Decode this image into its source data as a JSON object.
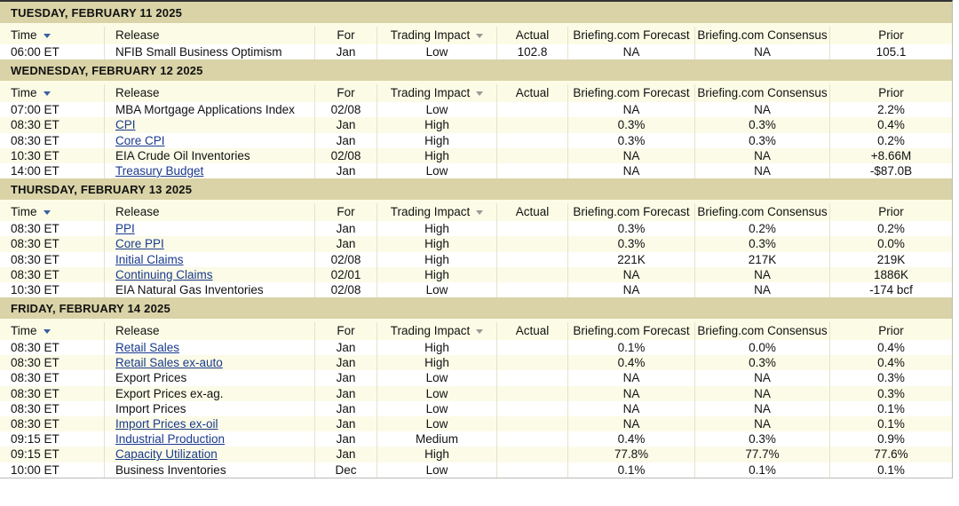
{
  "columns": [
    "Time",
    "Release",
    "For",
    "Trading Impact",
    "Actual",
    "Briefing.com Forecast",
    "Briefing.com Consensus",
    "Prior"
  ],
  "days": [
    {
      "title": "TUESDAY, FEBRUARY 11 2025",
      "rows": [
        {
          "cells": [
            "06:00 ET",
            "NFIB Small Business Optimism",
            "Jan",
            "Low",
            "102.8",
            "NA",
            "NA",
            "105.1"
          ],
          "linked": false
        }
      ]
    },
    {
      "title": "WEDNESDAY, FEBRUARY 12 2025",
      "rows": [
        {
          "cells": [
            "07:00 ET",
            "MBA Mortgage Applications Index",
            "02/08",
            "Low",
            null,
            "NA",
            "NA",
            "2.2%"
          ],
          "linked": false
        },
        {
          "cells": [
            "08:30 ET",
            "CPI",
            "Jan",
            "High",
            null,
            "0.3%",
            "0.3%",
            "0.4%"
          ],
          "linked": true
        },
        {
          "cells": [
            "08:30 ET",
            "Core CPI",
            "Jan",
            "High",
            null,
            "0.3%",
            "0.3%",
            "0.2%"
          ],
          "linked": true
        },
        {
          "cells": [
            "10:30 ET",
            "EIA Crude Oil Inventories",
            "02/08",
            "High",
            null,
            "NA",
            "NA",
            "+8.66M"
          ],
          "linked": false
        },
        {
          "cells": [
            "14:00 ET",
            "Treasury Budget",
            "Jan",
            "Low",
            null,
            "NA",
            "NA",
            "-$87.0B"
          ],
          "linked": true
        }
      ]
    },
    {
      "title": "THURSDAY, FEBRUARY 13 2025",
      "rows": [
        {
          "cells": [
            "08:30 ET",
            "PPI",
            "Jan",
            "High",
            null,
            "0.3%",
            "0.2%",
            "0.2%"
          ],
          "linked": true
        },
        {
          "cells": [
            "08:30 ET",
            "Core PPI",
            "Jan",
            "High",
            null,
            "0.3%",
            "0.3%",
            "0.0%"
          ],
          "linked": true
        },
        {
          "cells": [
            "08:30 ET",
            "Initial Claims",
            "02/08",
            "High",
            null,
            "221K",
            "217K",
            "219K"
          ],
          "linked": true
        },
        {
          "cells": [
            "08:30 ET",
            "Continuing Claims",
            "02/01",
            "High",
            null,
            "NA",
            "NA",
            "1886K"
          ],
          "linked": true
        },
        {
          "cells": [
            "10:30 ET",
            "EIA Natural Gas Inventories",
            "02/08",
            "Low",
            null,
            "NA",
            "NA",
            "-174 bcf"
          ],
          "linked": false
        }
      ]
    },
    {
      "title": "FRIDAY, FEBRUARY 14 2025",
      "rows": [
        {
          "cells": [
            "08:30 ET",
            "Retail Sales",
            "Jan",
            "High",
            null,
            "0.1%",
            "0.0%",
            "0.4%"
          ],
          "linked": true
        },
        {
          "cells": [
            "08:30 ET",
            "Retail Sales ex-auto",
            "Jan",
            "High",
            null,
            "0.4%",
            "0.3%",
            "0.4%"
          ],
          "linked": true
        },
        {
          "cells": [
            "08:30 ET",
            "Export Prices",
            "Jan",
            "Low",
            null,
            "NA",
            "NA",
            "0.3%"
          ],
          "linked": false
        },
        {
          "cells": [
            "08:30 ET",
            "Export Prices ex-ag.",
            "Jan",
            "Low",
            null,
            "NA",
            "NA",
            "0.3%"
          ],
          "linked": false
        },
        {
          "cells": [
            "08:30 ET",
            "Import Prices",
            "Jan",
            "Low",
            null,
            "NA",
            "NA",
            "0.1%"
          ],
          "linked": false
        },
        {
          "cells": [
            "08:30 ET",
            "Import Prices ex-oil",
            "Jan",
            "Low",
            null,
            "NA",
            "NA",
            "0.1%"
          ],
          "linked": true
        },
        {
          "cells": [
            "09:15 ET",
            "Industrial Production",
            "Jan",
            "Medium",
            null,
            "0.4%",
            "0.3%",
            "0.9%"
          ],
          "linked": true
        },
        {
          "cells": [
            "09:15 ET",
            "Capacity Utilization",
            "Jan",
            "High",
            null,
            "77.8%",
            "77.7%",
            "77.6%"
          ],
          "linked": true
        },
        {
          "cells": [
            "10:00 ET",
            "Business Inventories",
            "Dec",
            "Low",
            null,
            "0.1%",
            "0.1%",
            "0.1%"
          ],
          "linked": false
        }
      ]
    }
  ]
}
